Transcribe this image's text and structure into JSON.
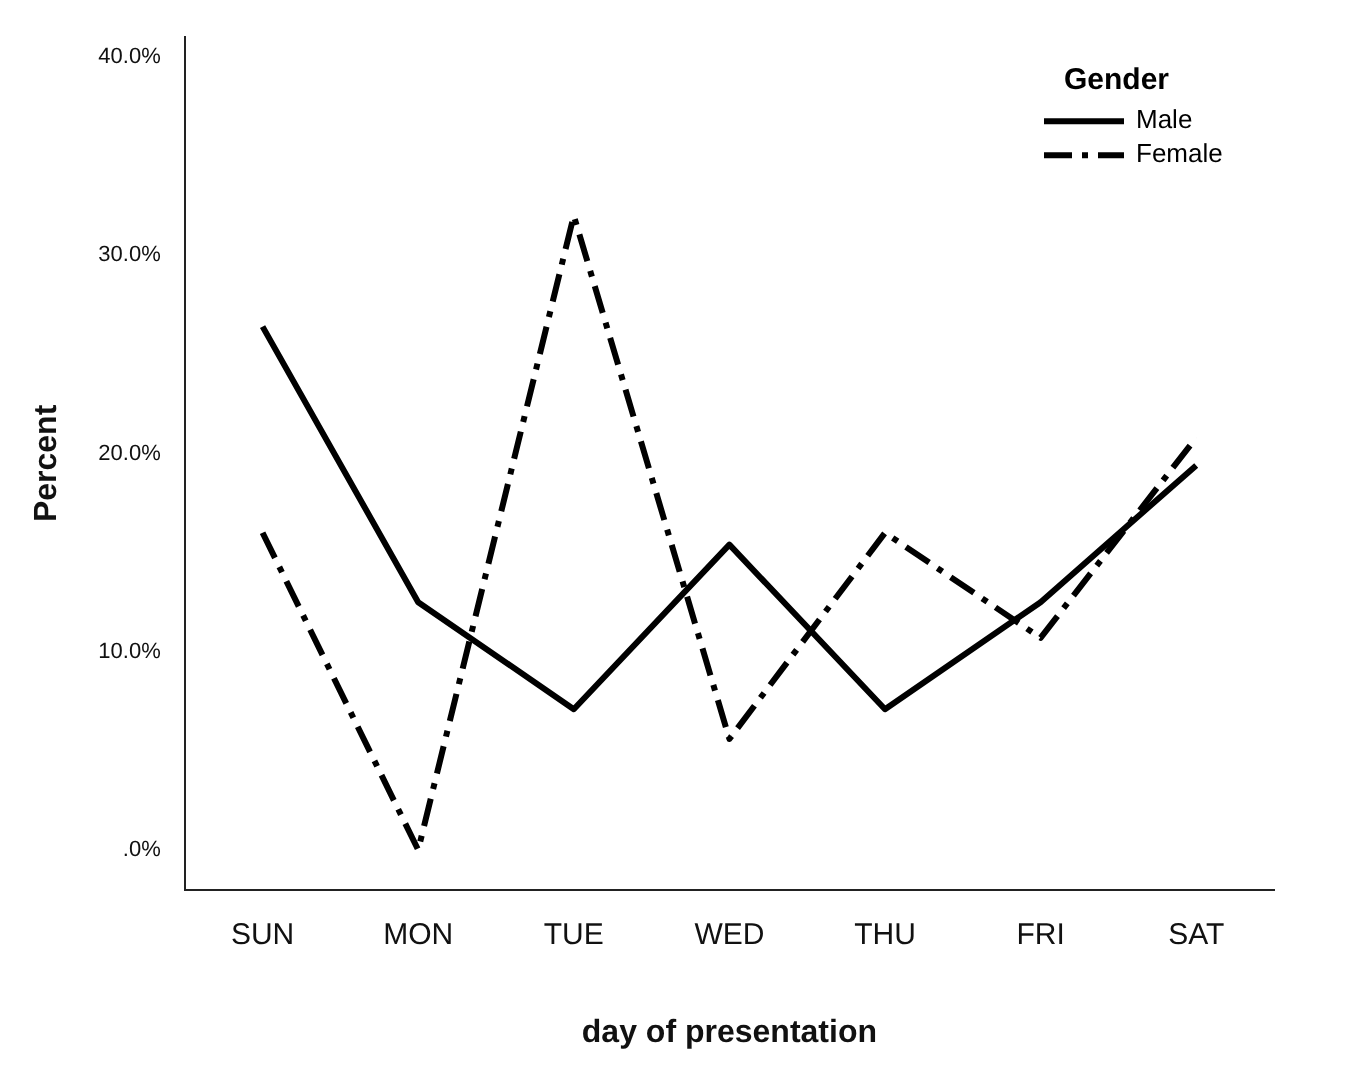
{
  "chart_data": {
    "type": "line",
    "xlabel": "day of presentation",
    "ylabel": "Percent",
    "legend_title": "Gender",
    "legend": "top right",
    "grid": false,
    "marker": "none",
    "categories": [
      "SUN",
      "MON",
      "TUE",
      "WED",
      "THU",
      "FRI",
      "SAT"
    ],
    "ylim": [
      -2,
      41
    ],
    "yticks": [
      {
        "value": 0,
        "label": ".0%"
      },
      {
        "value": 10,
        "label": "10.0%"
      },
      {
        "value": 20,
        "label": "20.0%"
      },
      {
        "value": 30,
        "label": "30.0%"
      },
      {
        "value": 40,
        "label": "40.0%"
      }
    ],
    "series": [
      {
        "name": "Male",
        "color": "#000000",
        "line_style": "solid",
        "values": [
          26.4,
          12.5,
          7.1,
          15.4,
          7.1,
          12.5,
          19.4
        ]
      },
      {
        "name": "Female",
        "color": "#000000",
        "line_style": "dashed",
        "values": [
          16.0,
          0.0,
          32.0,
          5.6,
          16.0,
          10.7,
          20.8
        ]
      }
    ]
  }
}
